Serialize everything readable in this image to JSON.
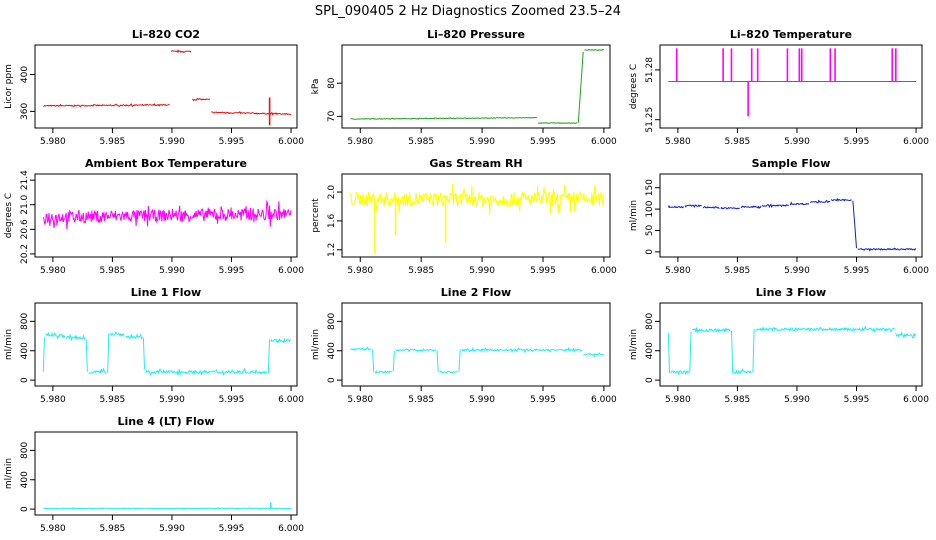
{
  "page_title": "SPL_090405  2 Hz Diagnostics Zoomed 23.5–24",
  "colors": {
    "red": "#e8120e",
    "green": "#1fa21f",
    "magenta": "#ff00ff",
    "yellow": "#ffff00",
    "blue": "#0b22c4",
    "cyan": "#22eef2"
  },
  "chart_data": [
    {
      "type": "line",
      "title": "Li–820 CO2",
      "ylabel": "Licor ppm",
      "color": "#e8120e",
      "noise": 0.6,
      "xlim": [
        5.9785,
        6.0005
      ],
      "ylim": [
        342,
        432
      ],
      "xticks": [
        "5.980",
        "5.985",
        "5.990",
        "5.995",
        "6.000"
      ],
      "yticks": [
        "360",
        "400"
      ],
      "segments": [
        {
          "x": [
            5.9792,
            5.9898
          ],
          "y": [
            366,
            367
          ]
        },
        {
          "x": [
            5.9899,
            5.9916
          ],
          "y": [
            425,
            425
          ]
        },
        {
          "x": [
            5.9917,
            5.9932
          ],
          "y": [
            373,
            373
          ]
        },
        {
          "x": [
            5.9933,
            6.0
          ],
          "y": [
            359,
            357
          ]
        }
      ],
      "spikes": [
        {
          "x": 5.9982,
          "y": [
            345,
            375
          ]
        }
      ]
    },
    {
      "type": "line",
      "title": "Li–820 Pressure",
      "ylabel": "kPa",
      "color": "#1fa21f",
      "noise": 0.08,
      "xlim": [
        5.9785,
        6.0005
      ],
      "ylim": [
        66.5,
        91.5
      ],
      "xticks": [
        "5.980",
        "5.985",
        "5.990",
        "5.995",
        "6.000"
      ],
      "yticks": [
        "70",
        "80"
      ],
      "segments": [
        {
          "x": [
            5.9792,
            5.9945
          ],
          "y": [
            69.2,
            69.6
          ]
        },
        {
          "x": [
            5.9946,
            5.9978
          ],
          "y": [
            68.0,
            68.0
          ]
        },
        {
          "x": [
            5.9979,
            5.9983
          ],
          "y": [
            68.0,
            89.5
          ]
        },
        {
          "x": [
            5.9984,
            6.0
          ],
          "y": [
            90.0,
            90.0
          ]
        }
      ],
      "spikes": []
    },
    {
      "type": "line",
      "title": "Li–820 Temperature",
      "ylabel": "degrees C",
      "color": "#ff00ff",
      "noise": 0,
      "xlim": [
        5.9785,
        6.0005
      ],
      "ylim": [
        51.245,
        51.295
      ],
      "xticks": [
        "5.980",
        "5.985",
        "5.990",
        "5.995",
        "6.000"
      ],
      "yticks": [
        "51.25",
        "51.28"
      ],
      "segments": [
        {
          "x": [
            5.9792,
            6.0
          ],
          "y": [
            51.273,
            51.273
          ]
        }
      ],
      "spikes": [
        {
          "x": 5.9799,
          "y": [
            51.273,
            51.293
          ]
        },
        {
          "x": 5.9838,
          "y": [
            51.273,
            51.293
          ]
        },
        {
          "x": 5.9845,
          "y": [
            51.273,
            51.293
          ]
        },
        {
          "x": 5.9859,
          "y": [
            51.252,
            51.273
          ]
        },
        {
          "x": 5.9862,
          "y": [
            51.273,
            51.293
          ]
        },
        {
          "x": 5.9867,
          "y": [
            51.273,
            51.293
          ]
        },
        {
          "x": 5.9892,
          "y": [
            51.273,
            51.293
          ]
        },
        {
          "x": 5.9902,
          "y": [
            51.273,
            51.293
          ]
        },
        {
          "x": 5.9904,
          "y": [
            51.273,
            51.293
          ]
        },
        {
          "x": 5.9928,
          "y": [
            51.273,
            51.293
          ]
        },
        {
          "x": 5.9932,
          "y": [
            51.273,
            51.293
          ]
        },
        {
          "x": 5.998,
          "y": [
            51.273,
            51.293
          ]
        },
        {
          "x": 5.9983,
          "y": [
            51.273,
            51.293
          ]
        }
      ]
    },
    {
      "type": "line",
      "title": "Ambient Box Temperature",
      "ylabel": "degrees C",
      "color": "#ff00ff",
      "noise": 0.1,
      "xlim": [
        5.9785,
        6.0005
      ],
      "ylim": [
        20.15,
        21.5
      ],
      "xticks": [
        "5.980",
        "5.985",
        "5.990",
        "5.995",
        "6.000"
      ],
      "yticks": [
        "20.2",
        "20.6",
        "21.0",
        "21.4"
      ],
      "segments": [
        {
          "x": [
            5.9792,
            6.0
          ],
          "y": [
            20.8,
            20.85
          ]
        }
      ],
      "spikes": []
    },
    {
      "type": "line",
      "title": "Gas Stream RH",
      "ylabel": "percent",
      "color": "#ffff00",
      "noise": 0.1,
      "xlim": [
        5.9785,
        6.0005
      ],
      "ylim": [
        1.1,
        2.25
      ],
      "xticks": [
        "5.980",
        "5.985",
        "5.990",
        "5.995",
        "6.000"
      ],
      "yticks": [
        "1.2",
        "1.6",
        "2.0"
      ],
      "segments": [
        {
          "x": [
            5.9792,
            6.0
          ],
          "y": [
            1.9,
            1.9
          ]
        }
      ],
      "spikes": [
        {
          "x": 5.9812,
          "y": [
            1.15,
            1.9
          ]
        },
        {
          "x": 5.9829,
          "y": [
            1.4,
            1.9
          ]
        },
        {
          "x": 5.987,
          "y": [
            1.3,
            1.9
          ]
        }
      ]
    },
    {
      "type": "line",
      "title": "Sample Flow",
      "ylabel": "ml/min",
      "color": "#0b22c4",
      "noise": 1.5,
      "xlim": [
        5.9785,
        6.0005
      ],
      "ylim": [
        -12,
        182
      ],
      "xticks": [
        "5.980",
        "5.985",
        "5.990",
        "5.995",
        "6.000"
      ],
      "yticks": [
        "0",
        "50",
        "100",
        "150"
      ],
      "segments": [
        {
          "x": [
            5.9792,
            5.9805
          ],
          "y": [
            105,
            105
          ]
        },
        {
          "x": [
            5.9806,
            5.982
          ],
          "y": [
            108,
            108
          ]
        },
        {
          "x": [
            5.9821,
            5.9835
          ],
          "y": [
            104,
            104
          ]
        },
        {
          "x": [
            5.9836,
            5.9852
          ],
          "y": [
            102,
            102
          ]
        },
        {
          "x": [
            5.9853,
            5.987
          ],
          "y": [
            105,
            105
          ]
        },
        {
          "x": [
            5.9871,
            5.9893
          ],
          "y": [
            108,
            108
          ]
        },
        {
          "x": [
            5.9894,
            5.991
          ],
          "y": [
            112,
            112
          ]
        },
        {
          "x": [
            5.9911,
            5.9928
          ],
          "y": [
            117,
            117
          ]
        },
        {
          "x": [
            5.9929,
            5.9946
          ],
          "y": [
            121,
            121
          ]
        },
        {
          "x": [
            5.9947,
            5.995
          ],
          "y": [
            121,
            8
          ]
        },
        {
          "x": [
            5.9951,
            6.0
          ],
          "y": [
            6,
            6
          ]
        }
      ],
      "spikes": []
    },
    {
      "type": "line",
      "title": "Line 1 Flow",
      "ylabel": "ml/min",
      "color": "#22eef2",
      "noise": 20,
      "xlim": [
        5.9785,
        6.0005
      ],
      "ylim": [
        -80,
        1050
      ],
      "xticks": [
        "5.980",
        "5.985",
        "5.990",
        "5.995",
        "6.000"
      ],
      "yticks": [
        "0",
        "400",
        "800"
      ],
      "segments": [
        {
          "x": [
            5.9792,
            5.9793
          ],
          "y": [
            120,
            600
          ]
        },
        {
          "x": [
            5.9794,
            5.981
          ],
          "y": [
            620,
            600
          ]
        },
        {
          "x": [
            5.9811,
            5.9827
          ],
          "y": [
            580,
            570
          ]
        },
        {
          "x": [
            5.9828,
            5.9829
          ],
          "y": [
            570,
            110
          ]
        },
        {
          "x": [
            5.983,
            5.9845
          ],
          "y": [
            110,
            110
          ]
        },
        {
          "x": [
            5.9846,
            5.9847
          ],
          "y": [
            110,
            620
          ]
        },
        {
          "x": [
            5.9848,
            5.986
          ],
          "y": [
            630,
            620
          ]
        },
        {
          "x": [
            5.9861,
            5.9875
          ],
          "y": [
            590,
            580
          ]
        },
        {
          "x": [
            5.9876,
            5.9877
          ],
          "y": [
            580,
            110
          ]
        },
        {
          "x": [
            5.9878,
            5.998
          ],
          "y": [
            110,
            110
          ]
        },
        {
          "x": [
            5.9981,
            5.9982
          ],
          "y": [
            110,
            560
          ]
        },
        {
          "x": [
            5.9983,
            6.0
          ],
          "y": [
            540,
            540
          ]
        }
      ],
      "spikes": []
    },
    {
      "type": "line",
      "title": "Line 2 Flow",
      "ylabel": "ml/min",
      "color": "#22eef2",
      "noise": 12,
      "xlim": [
        5.9785,
        6.0005
      ],
      "ylim": [
        -80,
        1050
      ],
      "xticks": [
        "5.980",
        "5.985",
        "5.990",
        "5.995",
        "6.000"
      ],
      "yticks": [
        "0",
        "400",
        "800"
      ],
      "segments": [
        {
          "x": [
            5.9792,
            5.9809
          ],
          "y": [
            420,
            420
          ]
        },
        {
          "x": [
            5.981,
            5.9811
          ],
          "y": [
            420,
            110
          ]
        },
        {
          "x": [
            5.9812,
            5.9826
          ],
          "y": [
            110,
            110
          ]
        },
        {
          "x": [
            5.9827,
            5.9828
          ],
          "y": [
            110,
            410
          ]
        },
        {
          "x": [
            5.9829,
            5.9862
          ],
          "y": [
            410,
            410
          ]
        },
        {
          "x": [
            5.9863,
            5.9864
          ],
          "y": [
            410,
            110
          ]
        },
        {
          "x": [
            5.9865,
            5.988
          ],
          "y": [
            110,
            110
          ]
        },
        {
          "x": [
            5.9881,
            5.9882
          ],
          "y": [
            110,
            410
          ]
        },
        {
          "x": [
            5.9883,
            5.9982
          ],
          "y": [
            410,
            410
          ]
        },
        {
          "x": [
            5.9983,
            6.0
          ],
          "y": [
            350,
            350
          ]
        }
      ],
      "spikes": []
    },
    {
      "type": "line",
      "title": "Line 3 Flow",
      "ylabel": "ml/min",
      "color": "#22eef2",
      "noise": 18,
      "xlim": [
        5.9785,
        6.0005
      ],
      "ylim": [
        -80,
        1050
      ],
      "xticks": [
        "5.980",
        "5.985",
        "5.990",
        "5.995",
        "6.000"
      ],
      "yticks": [
        "0",
        "400",
        "800"
      ],
      "segments": [
        {
          "x": [
            5.9792,
            5.9793
          ],
          "y": [
            640,
            110
          ]
        },
        {
          "x": [
            5.9794,
            5.9809
          ],
          "y": [
            110,
            110
          ]
        },
        {
          "x": [
            5.981,
            5.9811
          ],
          "y": [
            110,
            670
          ]
        },
        {
          "x": [
            5.9812,
            5.9844
          ],
          "y": [
            680,
            680
          ]
        },
        {
          "x": [
            5.9845,
            5.9846
          ],
          "y": [
            680,
            110
          ]
        },
        {
          "x": [
            5.9847,
            5.9862
          ],
          "y": [
            110,
            110
          ]
        },
        {
          "x": [
            5.9863,
            5.9864
          ],
          "y": [
            110,
            690
          ]
        },
        {
          "x": [
            5.9865,
            5.9982
          ],
          "y": [
            690,
            690
          ]
        },
        {
          "x": [
            5.9983,
            6.0
          ],
          "y": [
            610,
            610
          ]
        }
      ],
      "spikes": []
    },
    {
      "type": "line",
      "title": "Line 4 (LT) Flow",
      "ylabel": "ml/min",
      "color": "#22eef2",
      "noise": 4,
      "xlim": [
        5.9785,
        6.0005
      ],
      "ylim": [
        -80,
        1050
      ],
      "xticks": [
        "5.980",
        "5.985",
        "5.990",
        "5.995",
        "6.000"
      ],
      "yticks": [
        "0",
        "400",
        "800"
      ],
      "segments": [
        {
          "x": [
            5.9792,
            6.0
          ],
          "y": [
            10,
            10
          ]
        }
      ],
      "spikes": [
        {
          "x": 5.9983,
          "y": [
            10,
            90
          ]
        }
      ]
    }
  ]
}
